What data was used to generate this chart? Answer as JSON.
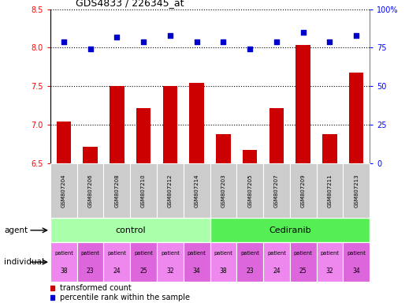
{
  "title": "GDS4833 / 226345_at",
  "samples": [
    "GSM807204",
    "GSM807206",
    "GSM807208",
    "GSM807210",
    "GSM807212",
    "GSM807214",
    "GSM807203",
    "GSM807205",
    "GSM807207",
    "GSM807209",
    "GSM807211",
    "GSM807213"
  ],
  "bar_values": [
    7.05,
    6.72,
    7.5,
    7.22,
    7.5,
    7.55,
    6.88,
    6.68,
    7.22,
    8.04,
    6.88,
    7.68
  ],
  "percentile_values": [
    79,
    74,
    82,
    79,
    83,
    79,
    79,
    74,
    79,
    85,
    79,
    83
  ],
  "ylim_left": [
    6.5,
    8.5
  ],
  "ylim_right": [
    0,
    100
  ],
  "yticks_left": [
    6.5,
    7.0,
    7.5,
    8.0,
    8.5
  ],
  "yticks_right": [
    0,
    25,
    50,
    75,
    100
  ],
  "bar_color": "#cc0000",
  "dot_color": "#0000cc",
  "bar_bottom": 6.5,
  "agent_control_label": "control",
  "agent_cediranib_label": "Cediranib",
  "agent_row_color_control": "#aaffaa",
  "agent_row_color_cediranib": "#55ee55",
  "individual_patients_control": [
    "38",
    "23",
    "24",
    "25",
    "32",
    "34"
  ],
  "individual_patients_cediranib": [
    "38",
    "23",
    "24",
    "25",
    "32",
    "34"
  ],
  "individual_row_color_odd": "#ee88ee",
  "individual_row_color_even": "#dd66dd",
  "legend_red_label": "transformed count",
  "legend_blue_label": "percentile rank within the sample",
  "sample_bg_color": "#cccccc",
  "n_control": 6,
  "n_cediranib": 6
}
